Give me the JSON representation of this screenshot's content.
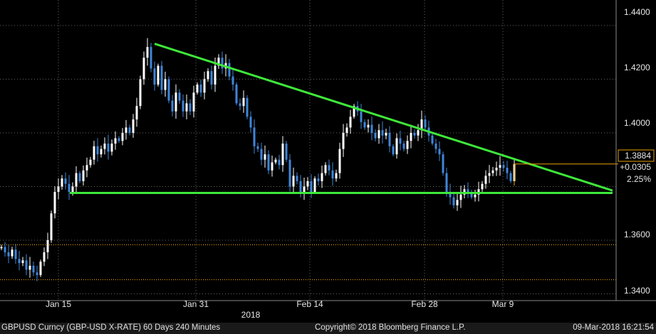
{
  "chart_data": {
    "type": "candlestick",
    "title": "",
    "xlabel": "",
    "ylabel": "",
    "x_tick_labels": [
      "Jan 15",
      "Jan 31",
      "Feb 14",
      "Feb 28",
      "Mar 9"
    ],
    "x_year_label": "2018",
    "y_tick_labels": [
      "1.4400",
      "1.4200",
      "1.4000",
      "1.3600",
      "1.3400"
    ],
    "y_ticks": [
      1.44,
      1.42,
      1.4,
      1.38,
      1.36,
      1.34
    ],
    "ylim": [
      1.3375,
      1.4495
    ],
    "grid": true,
    "last_price": "1.3884",
    "change": "+0.0305",
    "change_pct": "2.25%",
    "series": [
      {
        "x": [
          0,
          5,
          10,
          15,
          20,
          25,
          30,
          35,
          40,
          45,
          50,
          55,
          60,
          65,
          70,
          75,
          80,
          85,
          90,
          95,
          100,
          105,
          110,
          115,
          120,
          125,
          130,
          135,
          140,
          145,
          150,
          155,
          160,
          165,
          170,
          175,
          180,
          185,
          190,
          195,
          200,
          205,
          210,
          215,
          220,
          225,
          230,
          235,
          240,
          245,
          250,
          255,
          260,
          265,
          270,
          275,
          280,
          285,
          290,
          295,
          300,
          305,
          310,
          315,
          320,
          325,
          330,
          335,
          340,
          345,
          350,
          355,
          360,
          365,
          370,
          375,
          380,
          385,
          390,
          395,
          400,
          405,
          410,
          415,
          420,
          425,
          430,
          435,
          440,
          445,
          450,
          455,
          460,
          465,
          470,
          475,
          480,
          485,
          490,
          495,
          500,
          505,
          510,
          515,
          520,
          525,
          530,
          535,
          540,
          545,
          550,
          555,
          560,
          565,
          570,
          575,
          580,
          585,
          590,
          595,
          600,
          605,
          610,
          615,
          620,
          625,
          630,
          635,
          640,
          645,
          650,
          655,
          660,
          665,
          670,
          675,
          680,
          685,
          690,
          695,
          700,
          705,
          710,
          715,
          720
        ],
        "close": [
          1.3575,
          1.3555,
          1.354,
          1.3565,
          1.353,
          1.3515,
          1.3525,
          1.349,
          1.3505,
          1.348,
          1.347,
          1.352,
          1.3555,
          1.36,
          1.37,
          1.378,
          1.38,
          1.383,
          1.381,
          1.378,
          1.38,
          1.385,
          1.382,
          1.386,
          1.388,
          1.39,
          1.395,
          1.392,
          1.394,
          1.396,
          1.393,
          1.396,
          1.398,
          1.397,
          1.4,
          1.402,
          1.4,
          1.405,
          1.41,
          1.42,
          1.428,
          1.432,
          1.424,
          1.418,
          1.425,
          1.416,
          1.42,
          1.412,
          1.408,
          1.415,
          1.412,
          1.408,
          1.411,
          1.408,
          1.415,
          1.418,
          1.415,
          1.42,
          1.423,
          1.418,
          1.425,
          1.428,
          1.424,
          1.426,
          1.421,
          1.418,
          1.411,
          1.41,
          1.413,
          1.406,
          1.402,
          1.395,
          1.394,
          1.39,
          1.392,
          1.386,
          1.389,
          1.39,
          1.388,
          1.396,
          1.39,
          1.38,
          1.384,
          1.382,
          1.378,
          1.38,
          1.382,
          1.378,
          1.383,
          1.382,
          1.385,
          1.388,
          1.386,
          1.383,
          1.385,
          1.394,
          1.4,
          1.402,
          1.406,
          1.41,
          1.408,
          1.404,
          1.402,
          1.403,
          1.4,
          1.398,
          1.401,
          1.399,
          1.4,
          1.395,
          1.392,
          1.398,
          1.396,
          1.394,
          1.397,
          1.4,
          1.399,
          1.401,
          1.405,
          1.402,
          1.399,
          1.396,
          1.394,
          1.392,
          1.385,
          1.378,
          1.376,
          1.373,
          1.375,
          1.377,
          1.379,
          1.378,
          1.376,
          1.377,
          1.379,
          1.381,
          1.384,
          1.385,
          1.386,
          1.387,
          1.388,
          1.387,
          1.385,
          1.382,
          1.3884
        ]
      }
    ],
    "trendlines": [
      {
        "name": "",
        "x": [
          217,
          860
        ],
        "y": [
          1.4332,
          1.3785
        ]
      },
      {
        "name": "",
        "x": [
          98,
          860
        ],
        "y": [
          1.3776,
          1.3776
        ]
      }
    ],
    "reference_lines": [
      {
        "y": 1.3583,
        "color": "#e8a000",
        "style": "dotted"
      },
      {
        "y": 1.3453,
        "color": "#e8a000",
        "style": "dotted"
      }
    ],
    "colors": {
      "up": "#ffffff",
      "down": "#3f86d8",
      "trendline": "#3ee83a",
      "last_price_line": "#e8a000",
      "grid": "#666666",
      "background": "#000000"
    }
  },
  "footer": {
    "left": "GBPUSD Curncy (GBP-USD X-RATE) 60 Days 240 Minutes",
    "center": "Copyright© 2018 Bloomberg Finance L.P.",
    "right": "09-Mar-2018 16:21:54"
  }
}
